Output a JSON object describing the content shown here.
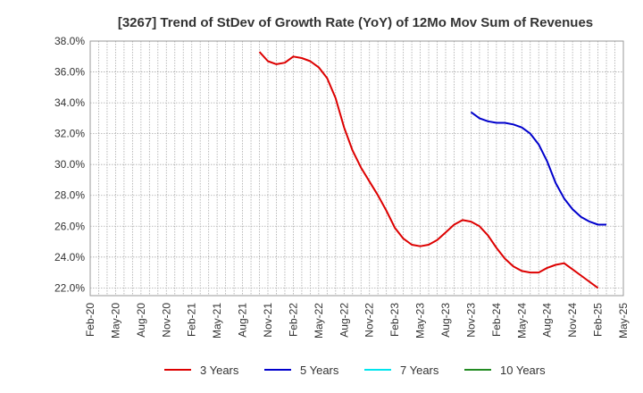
{
  "chart_data": {
    "type": "line",
    "title": "[3267]  Trend of StDev of Growth Rate (YoY) of 12Mo Mov Sum of Revenues",
    "xlabel": "",
    "ylabel": "",
    "ylim": [
      21.5,
      38.0
    ],
    "y_ticks": [
      22.0,
      24.0,
      26.0,
      28.0,
      30.0,
      32.0,
      34.0,
      36.0,
      38.0
    ],
    "y_tick_labels": [
      "22.0%",
      "24.0%",
      "26.0%",
      "28.0%",
      "30.0%",
      "32.0%",
      "34.0%",
      "36.0%",
      "38.0%"
    ],
    "x_range_months": [
      0,
      63
    ],
    "x_tick_labels": [
      "Feb-20",
      "May-20",
      "Aug-20",
      "Nov-20",
      "Feb-21",
      "May-21",
      "Aug-21",
      "Nov-21",
      "Feb-22",
      "May-22",
      "Aug-22",
      "Nov-22",
      "Feb-23",
      "May-23",
      "Aug-23",
      "Nov-23",
      "Feb-24",
      "May-24",
      "Aug-24",
      "Nov-24",
      "Feb-25",
      "May-25"
    ],
    "grid": true,
    "legend_position": "bottom",
    "series": [
      {
        "name": "3 Years",
        "color": "#dd0000",
        "start_month": 20,
        "values": [
          37.3,
          36.7,
          36.5,
          36.6,
          37.0,
          36.9,
          36.7,
          36.3,
          35.6,
          34.3,
          32.4,
          30.9,
          29.8,
          28.9,
          28.0,
          27.0,
          25.9,
          25.2,
          24.8,
          24.7,
          24.8,
          25.1,
          25.6,
          26.1,
          26.4,
          26.3,
          26.0,
          25.4,
          24.6,
          23.9,
          23.4,
          23.1,
          23.0,
          23.0,
          23.3,
          23.5,
          23.6,
          23.2,
          22.8,
          22.4,
          22.0
        ]
      },
      {
        "name": "5 Years",
        "color": "#0000cc",
        "start_month": 45,
        "values": [
          33.4,
          33.0,
          32.8,
          32.7,
          32.7,
          32.6,
          32.4,
          32.0,
          31.3,
          30.2,
          28.8,
          27.8,
          27.1,
          26.6,
          26.3,
          26.1,
          26.1
        ]
      },
      {
        "name": "7 Years",
        "color": "#00e5ee",
        "start_month": 0,
        "values": []
      },
      {
        "name": "10 Years",
        "color": "#228b22",
        "start_month": 0,
        "values": []
      }
    ]
  }
}
